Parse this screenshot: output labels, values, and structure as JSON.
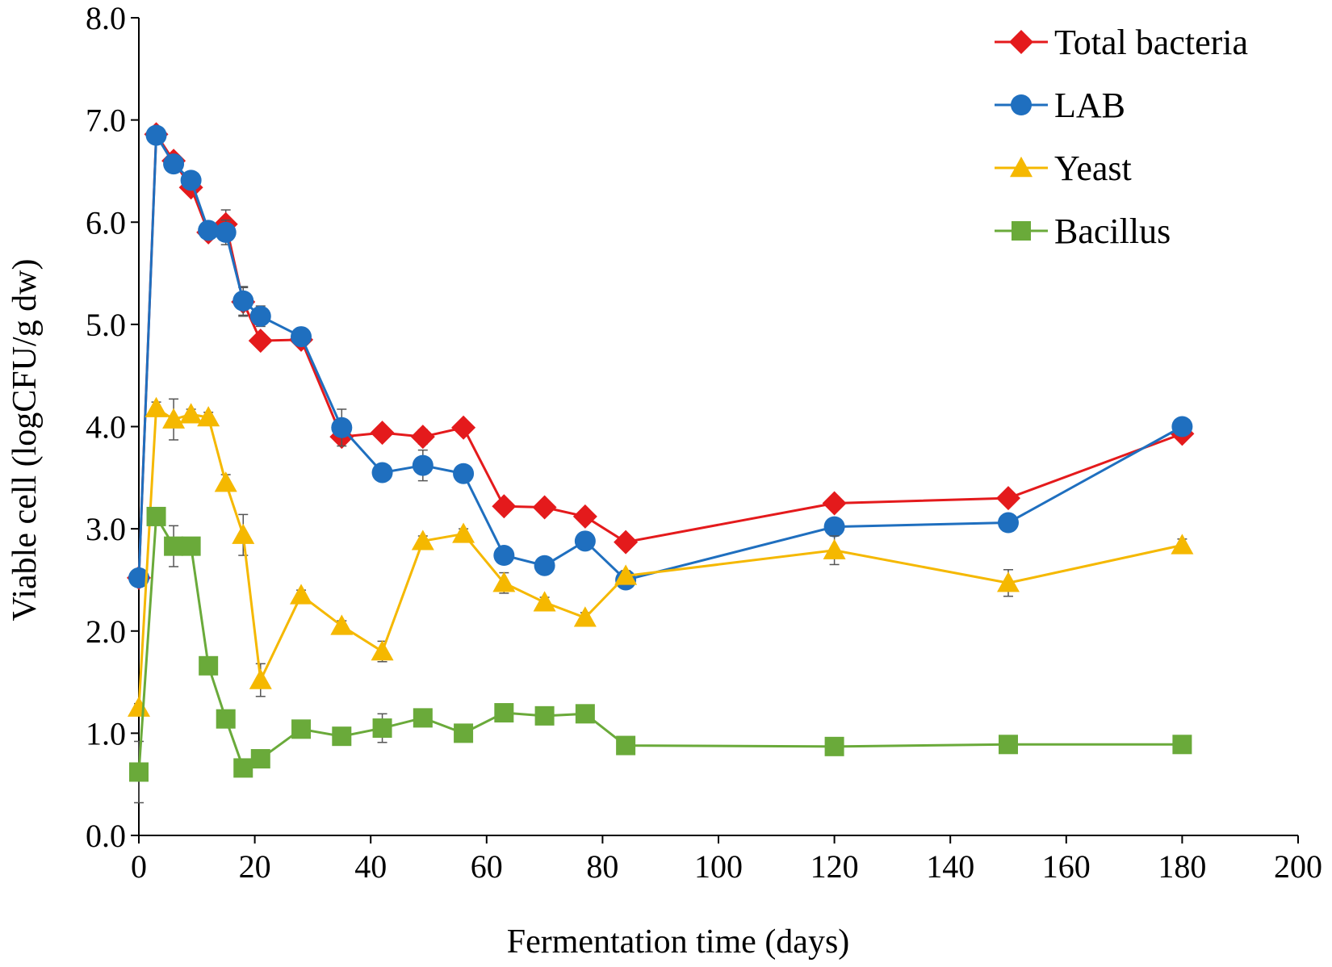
{
  "chart_data": {
    "type": "line",
    "title": "",
    "xlabel": "Fermentation time (days)",
    "ylabel": "Viable cell (logCFU/g dw)",
    "xlim": [
      0,
      200
    ],
    "ylim": [
      0,
      8
    ],
    "x_ticks": [
      "0",
      "20",
      "40",
      "60",
      "80",
      "100",
      "120",
      "140",
      "160",
      "180",
      "200"
    ],
    "y_ticks": [
      "0.0",
      "1.0",
      "2.0",
      "3.0",
      "4.0",
      "5.0",
      "6.0",
      "7.0",
      "8.0"
    ],
    "grid": false,
    "legend_position": "top-right",
    "x": [
      0,
      3,
      6,
      9,
      12,
      15,
      18,
      21,
      28,
      35,
      42,
      49,
      56,
      63,
      70,
      77,
      84,
      120,
      150,
      180
    ],
    "series": [
      {
        "name": "Total bacteria",
        "color": "#e41a1c",
        "marker": "diamond",
        "values": [
          2.52,
          6.86,
          6.6,
          6.34,
          5.9,
          5.98,
          5.22,
          4.84,
          4.85,
          3.9,
          3.94,
          3.9,
          3.99,
          3.22,
          3.21,
          3.12,
          2.87,
          3.25,
          3.3,
          3.93
        ],
        "errors": [
          0.03,
          0.07,
          0.05,
          0.06,
          0.05,
          0.14,
          0.14,
          0.05,
          0.05,
          0.06,
          0.06,
          0.07,
          0.05,
          0.05,
          0.05,
          0.06,
          0.06,
          0.05,
          0.05,
          0.05
        ]
      },
      {
        "name": "LAB",
        "color": "#1f6fbf",
        "marker": "circle",
        "values": [
          2.52,
          6.85,
          6.57,
          6.41,
          5.92,
          5.9,
          5.23,
          5.08,
          4.88,
          3.99,
          3.55,
          3.62,
          3.54,
          2.74,
          2.64,
          2.88,
          2.5,
          3.02,
          3.06,
          4.0
        ],
        "errors": [
          0.03,
          0.05,
          0.06,
          0.05,
          0.05,
          0.12,
          0.14,
          0.1,
          0.05,
          0.18,
          0.05,
          0.15,
          0.05,
          0.05,
          0.05,
          0.05,
          0.05,
          0.05,
          0.05,
          0.05
        ]
      },
      {
        "name": "Yeast",
        "color": "#f5b800",
        "marker": "triangle",
        "values": [
          1.25,
          4.18,
          4.07,
          4.12,
          4.09,
          3.45,
          2.94,
          1.52,
          2.35,
          2.05,
          1.8,
          2.88,
          2.95,
          2.47,
          2.28,
          2.13,
          2.54,
          2.79,
          2.47,
          2.84
        ],
        "errors": [
          0.04,
          0.06,
          0.2,
          0.05,
          0.05,
          0.08,
          0.2,
          0.16,
          0.05,
          0.05,
          0.1,
          0.05,
          0.05,
          0.1,
          0.05,
          0.05,
          0.05,
          0.14,
          0.13,
          0.06
        ]
      },
      {
        "name": "Bacillus",
        "color": "#6aaa3a",
        "marker": "square",
        "values": [
          0.62,
          3.12,
          2.83,
          2.83,
          1.66,
          1.14,
          0.66,
          0.75,
          1.04,
          0.97,
          1.05,
          1.15,
          1.0,
          1.2,
          1.17,
          1.19,
          0.88,
          0.87,
          0.89,
          0.89
        ],
        "errors": [
          0.3,
          0.05,
          0.2,
          0.05,
          0.06,
          0.05,
          0.05,
          0.05,
          0.05,
          0.05,
          0.14,
          0.05,
          0.05,
          0.05,
          0.05,
          0.05,
          0.05,
          0.05,
          0.05,
          0.05
        ]
      }
    ]
  }
}
